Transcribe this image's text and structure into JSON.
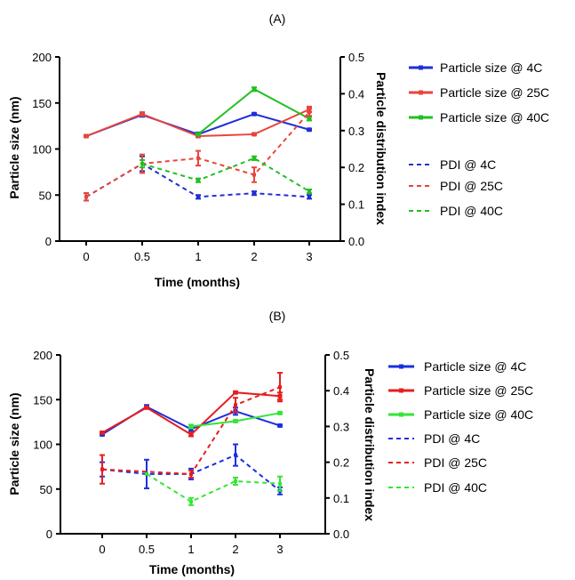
{
  "colors": {
    "blue": "#1f2fd6",
    "red": "#e8453c",
    "green": "#22c022",
    "blue_b": "#1a2fe0",
    "red_b": "#e61e1e",
    "green_b": "#33e633"
  },
  "chart_data": [
    {
      "type": "line",
      "panel_label": "(A)",
      "xlabel": "Time (months)",
      "ylabel": "Particle size (nm)",
      "y2label": "Particle distribution index",
      "categories": [
        "0",
        "0.5",
        "1",
        "2",
        "3"
      ],
      "ylim": [
        0,
        200
      ],
      "y2lim": [
        0,
        0.5
      ],
      "yticks": [
        "0",
        "50",
        "100",
        "150",
        "200"
      ],
      "y2ticks": [
        "0.0",
        "0.1",
        "0.2",
        "0.3",
        "0.4",
        "0.5"
      ],
      "legend_position": "right",
      "series": [
        {
          "name": "Particle size @ 4C",
          "axis": "left",
          "style": "solid",
          "color": "blue",
          "values": [
            114,
            137,
            116,
            138,
            121
          ],
          "errors": [
            1,
            2,
            2,
            1,
            1
          ]
        },
        {
          "name": "Particle size @ 25C",
          "axis": "left",
          "style": "solid",
          "color": "red",
          "values": [
            114,
            138,
            114,
            116,
            143
          ],
          "errors": [
            1,
            2,
            1,
            1,
            3
          ]
        },
        {
          "name": "Particle size @ 40C",
          "axis": "left",
          "style": "solid",
          "color": "green",
          "values": [
            null,
            null,
            116,
            165,
            133
          ],
          "errors": [
            0,
            0,
            1,
            2,
            2
          ]
        },
        {
          "name": "PDI @ 4C",
          "axis": "right",
          "style": "dashed",
          "color": "blue",
          "values": [
            0.12,
            0.21,
            0.12,
            0.13,
            0.12
          ],
          "errors": [
            0.01,
            0.02,
            0.005,
            0.005,
            0.005
          ]
        },
        {
          "name": "PDI @ 25C",
          "axis": "right",
          "style": "dashed",
          "color": "red",
          "values": [
            0.12,
            0.21,
            0.225,
            0.18,
            0.35
          ],
          "errors": [
            0.01,
            0.025,
            0.02,
            0.02,
            0.01
          ]
        },
        {
          "name": "PDI @ 40C",
          "axis": "right",
          "style": "dashed",
          "color": "green",
          "values": [
            null,
            0.21,
            0.165,
            0.225,
            0.135
          ],
          "errors": [
            0,
            0.01,
            0.005,
            0.005,
            0.005
          ]
        }
      ]
    },
    {
      "type": "line",
      "panel_label": "(B)",
      "xlabel": "Time (months)",
      "ylabel": "Particle size (nm)",
      "y2label": "Particle distribution index",
      "categories": [
        "0",
        "0.5",
        "1",
        "2",
        "3"
      ],
      "ylim": [
        0,
        200
      ],
      "y2lim": [
        0,
        0.5
      ],
      "yticks": [
        "0",
        "50",
        "100",
        "150",
        "200"
      ],
      "y2ticks": [
        "0.0",
        "0.1",
        "0.2",
        "0.3",
        "0.4",
        "0.5"
      ],
      "legend_position": "right",
      "series": [
        {
          "name": "Particle size @ 4C",
          "axis": "left",
          "style": "solid",
          "color": "blue_b",
          "values": [
            111,
            142,
            117,
            137,
            121
          ],
          "errors": [
            1,
            2,
            2,
            4,
            1
          ]
        },
        {
          "name": "Particle size @ 25C",
          "axis": "left",
          "style": "solid",
          "color": "red_b",
          "values": [
            113,
            141,
            111,
            158,
            154
          ],
          "errors": [
            1,
            1,
            2,
            1,
            4
          ]
        },
        {
          "name": "Particle size @ 40C",
          "axis": "left",
          "style": "solid",
          "color": "green_b",
          "values": [
            null,
            null,
            120,
            126,
            135
          ],
          "errors": [
            0,
            0,
            2,
            1,
            1
          ]
        },
        {
          "name": "PDI @ 4C",
          "axis": "right",
          "style": "dashed",
          "color": "blue_b",
          "values": [
            0.18,
            0.167,
            0.167,
            0.22,
            0.12
          ],
          "errors": [
            0.02,
            0.04,
            0.015,
            0.03,
            0.01
          ]
        },
        {
          "name": "PDI @ 25C",
          "axis": "right",
          "style": "dashed",
          "color": "red_b",
          "values": [
            0.18,
            null,
            0.167,
            0.36,
            0.41
          ],
          "errors": [
            0.04,
            0,
            0.01,
            0.02,
            0.04
          ]
        },
        {
          "name": "PDI @ 40C",
          "axis": "right",
          "style": "dashed",
          "color": "green_b",
          "values": [
            null,
            0.167,
            0.09,
            0.147,
            0.14
          ],
          "errors": [
            0,
            0,
            0.01,
            0.01,
            0.02
          ]
        }
      ]
    }
  ]
}
